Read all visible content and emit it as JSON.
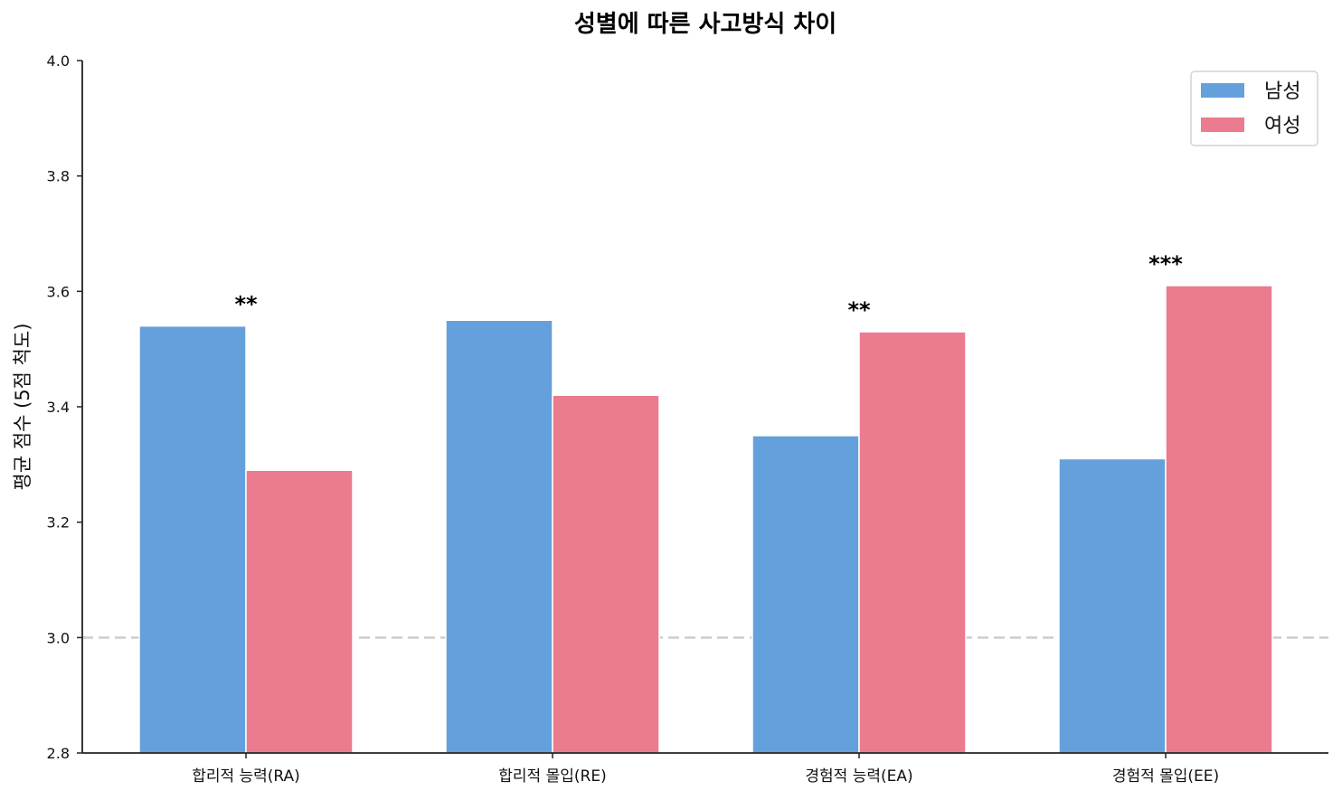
{
  "chart_data": {
    "type": "bar",
    "title": "성별에 따른 사고방식 차이",
    "xlabel": "",
    "ylabel": "평균 점수 (5점 척도)",
    "ylim": [
      2.8,
      4.0
    ],
    "yticks": [
      "2.8",
      "3.0",
      "3.2",
      "3.4",
      "3.6",
      "3.8",
      "4.0"
    ],
    "categories": [
      "합리적 능력(RA)",
      "합리적 몰입(RE)",
      "경험적 능력(EA)",
      "경험적 몰입(EE)"
    ],
    "series": [
      {
        "name": "남성",
        "color": "#64A0DC",
        "values": [
          3.54,
          3.55,
          3.35,
          3.31
        ]
      },
      {
        "name": "여성",
        "color": "#EB7B8E",
        "values": [
          3.29,
          3.42,
          3.53,
          3.61
        ]
      }
    ],
    "significance": [
      "**",
      "",
      "**",
      "***"
    ],
    "reference_line": {
      "y": 3.0,
      "style": "dashed",
      "color": "#cccccc"
    },
    "grid": false,
    "legend_position": "upper right"
  }
}
